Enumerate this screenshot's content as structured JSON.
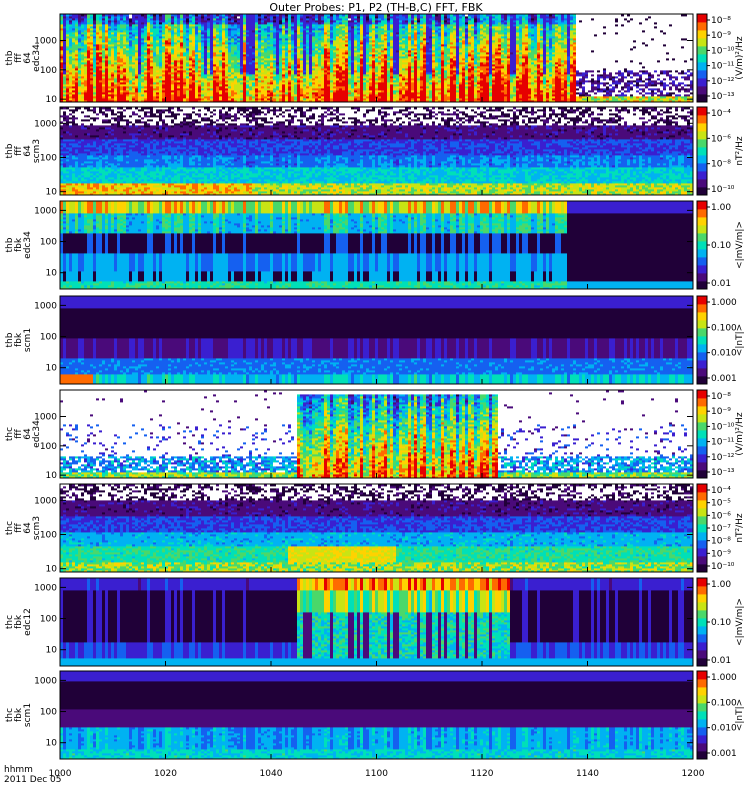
{
  "chart_data": {
    "type": "heatmap",
    "title": "Outer Probes: P1, P2 (TH-B,C) FFT, FBK",
    "date_label": "2011 Dec 05",
    "time_label": "hhmm",
    "x_ticks": [
      "1000",
      "1020",
      "1040",
      "1100",
      "1120",
      "1140",
      "1200"
    ],
    "x_range": [
      "10:00",
      "12:00"
    ],
    "panels": [
      {
        "ylabel": [
          "thb",
          "fff",
          "64",
          "edc34"
        ],
        "yticks": [
          "10",
          "100",
          "1000"
        ],
        "ylim": [
          8,
          8000
        ],
        "colorbar_label": "(V/m)²/Hz",
        "colorbar_ticks": [
          "10⁻⁸",
          "10⁻⁹",
          "10⁻¹⁰",
          "10⁻¹¹",
          "10⁻¹²",
          "10⁻¹³"
        ],
        "pattern": "efield_b"
      },
      {
        "ylabel": [
          "thb",
          "fff",
          "64",
          "scm3"
        ],
        "yticks": [
          "10",
          "100",
          "1000"
        ],
        "ylim": [
          8,
          3000
        ],
        "colorbar_label": "nT²/Hz",
        "colorbar_ticks": [
          "10⁻⁴",
          "10⁻⁶",
          "10⁻⁸",
          "10⁻¹⁰"
        ],
        "pattern": "scm_b"
      },
      {
        "ylabel": [
          "thb",
          "fbk",
          "edc34"
        ],
        "yticks": [
          "10",
          "100",
          "1000"
        ],
        "ylim": [
          3,
          2000
        ],
        "colorbar_label": "<|mV/m|>",
        "colorbar_ticks": [
          "1.00",
          "0.10",
          "0.01"
        ],
        "pattern": "fbk_e_b"
      },
      {
        "ylabel": [
          "thb",
          "fbk",
          "scm1"
        ],
        "yticks": [
          "10",
          "100",
          "1000"
        ],
        "ylim": [
          3,
          2000
        ],
        "colorbar_label": "<|nT|>",
        "colorbar_ticks": [
          "1.000",
          "0.100",
          "0.010",
          "0.001"
        ],
        "pattern": "fbk_b_b"
      },
      {
        "ylabel": [
          "thc",
          "fff",
          "64",
          "edc34"
        ],
        "yticks": [
          "10",
          "100",
          "1000"
        ],
        "ylim": [
          8,
          8000
        ],
        "colorbar_label": "(V/m)²/Hz",
        "colorbar_ticks": [
          "10⁻⁸",
          "10⁻⁹",
          "10⁻¹⁰",
          "10⁻¹¹",
          "10⁻¹²",
          "10⁻¹³"
        ],
        "pattern": "efield_c"
      },
      {
        "ylabel": [
          "thc",
          "fff",
          "64",
          "scm3"
        ],
        "yticks": [
          "10",
          "100",
          "1000"
        ],
        "ylim": [
          8,
          3000
        ],
        "colorbar_label": "nT²/Hz",
        "colorbar_ticks": [
          "10⁻⁴",
          "10⁻⁵",
          "10⁻⁶",
          "10⁻⁷",
          "10⁻⁸",
          "10⁻⁹",
          "10⁻¹⁰"
        ],
        "pattern": "scm_c"
      },
      {
        "ylabel": [
          "thc",
          "fbk",
          "edc12"
        ],
        "yticks": [
          "10",
          "100",
          "1000"
        ],
        "ylim": [
          3,
          2000
        ],
        "colorbar_label": "<|mV/m|>",
        "colorbar_ticks": [
          "1.00",
          "0.10",
          "0.01"
        ],
        "pattern": "fbk_e_c"
      },
      {
        "ylabel": [
          "thc",
          "fbk",
          "scm1"
        ],
        "yticks": [
          "10",
          "100",
          "1000"
        ],
        "ylim": [
          3,
          2000
        ],
        "colorbar_label": "<|nT|>",
        "colorbar_ticks": [
          "1.000",
          "0.100",
          "0.010",
          "0.001"
        ],
        "pattern": "fbk_b_c"
      }
    ]
  },
  "colors": {
    "colormap": [
      "#200038",
      "#4a0a7a",
      "#3a1fd0",
      "#1560f0",
      "#00b2f2",
      "#00e0b8",
      "#4ad86a",
      "#c8e414",
      "#ffd200",
      "#ff6a00",
      "#e60000"
    ],
    "axis": "#000000",
    "background": "#ffffff"
  }
}
